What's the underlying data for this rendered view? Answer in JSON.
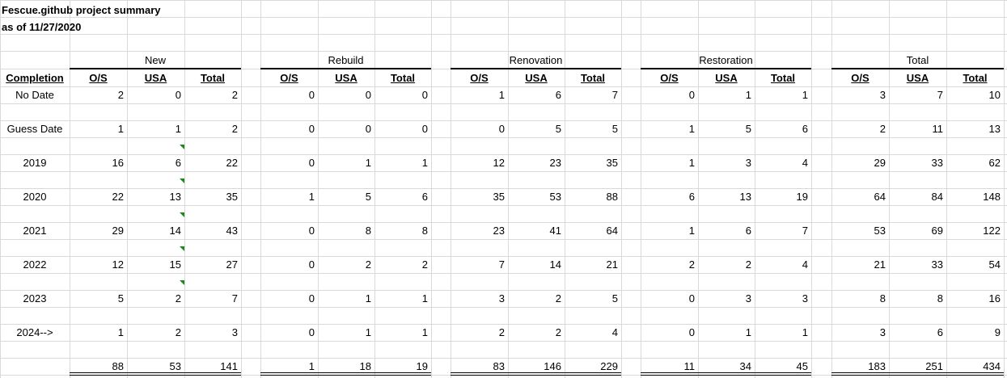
{
  "title": "Fescue.github project summary",
  "subtitle": "as of 11/27/2020",
  "row_header": "Completion",
  "categories": [
    "New",
    "Rebuild",
    "Renovation",
    "Restoration",
    "Total"
  ],
  "column_headers": [
    "O/S",
    "USA",
    "Total"
  ],
  "rows": [
    {
      "label": "No Date",
      "values": [
        2,
        0,
        2,
        0,
        0,
        0,
        1,
        6,
        7,
        0,
        1,
        1,
        3,
        7,
        10
      ]
    },
    {
      "label": "Guess Date",
      "values": [
        1,
        1,
        2,
        0,
        0,
        0,
        0,
        5,
        5,
        1,
        5,
        6,
        2,
        11,
        13
      ]
    },
    {
      "label": "2019",
      "values": [
        16,
        6,
        22,
        0,
        1,
        1,
        12,
        23,
        35,
        1,
        3,
        4,
        29,
        33,
        62
      ]
    },
    {
      "label": "2020",
      "values": [
        22,
        13,
        35,
        1,
        5,
        6,
        35,
        53,
        88,
        6,
        13,
        19,
        64,
        84,
        148
      ]
    },
    {
      "label": "2021",
      "values": [
        29,
        14,
        43,
        0,
        8,
        8,
        23,
        41,
        64,
        1,
        6,
        7,
        53,
        69,
        122
      ]
    },
    {
      "label": "2022",
      "values": [
        12,
        15,
        27,
        0,
        2,
        2,
        7,
        14,
        21,
        2,
        2,
        4,
        21,
        33,
        54
      ]
    },
    {
      "label": "2023",
      "values": [
        5,
        2,
        7,
        0,
        1,
        1,
        3,
        2,
        5,
        0,
        3,
        3,
        8,
        8,
        16
      ]
    },
    {
      "label": "2024-->",
      "values": [
        1,
        2,
        3,
        0,
        1,
        1,
        2,
        2,
        4,
        0,
        1,
        1,
        3,
        6,
        9
      ]
    }
  ],
  "totals": [
    88,
    53,
    141,
    1,
    18,
    19,
    83,
    146,
    229,
    11,
    34,
    45,
    183,
    251,
    434
  ],
  "comment_marker_color": "#1a8a1a"
}
